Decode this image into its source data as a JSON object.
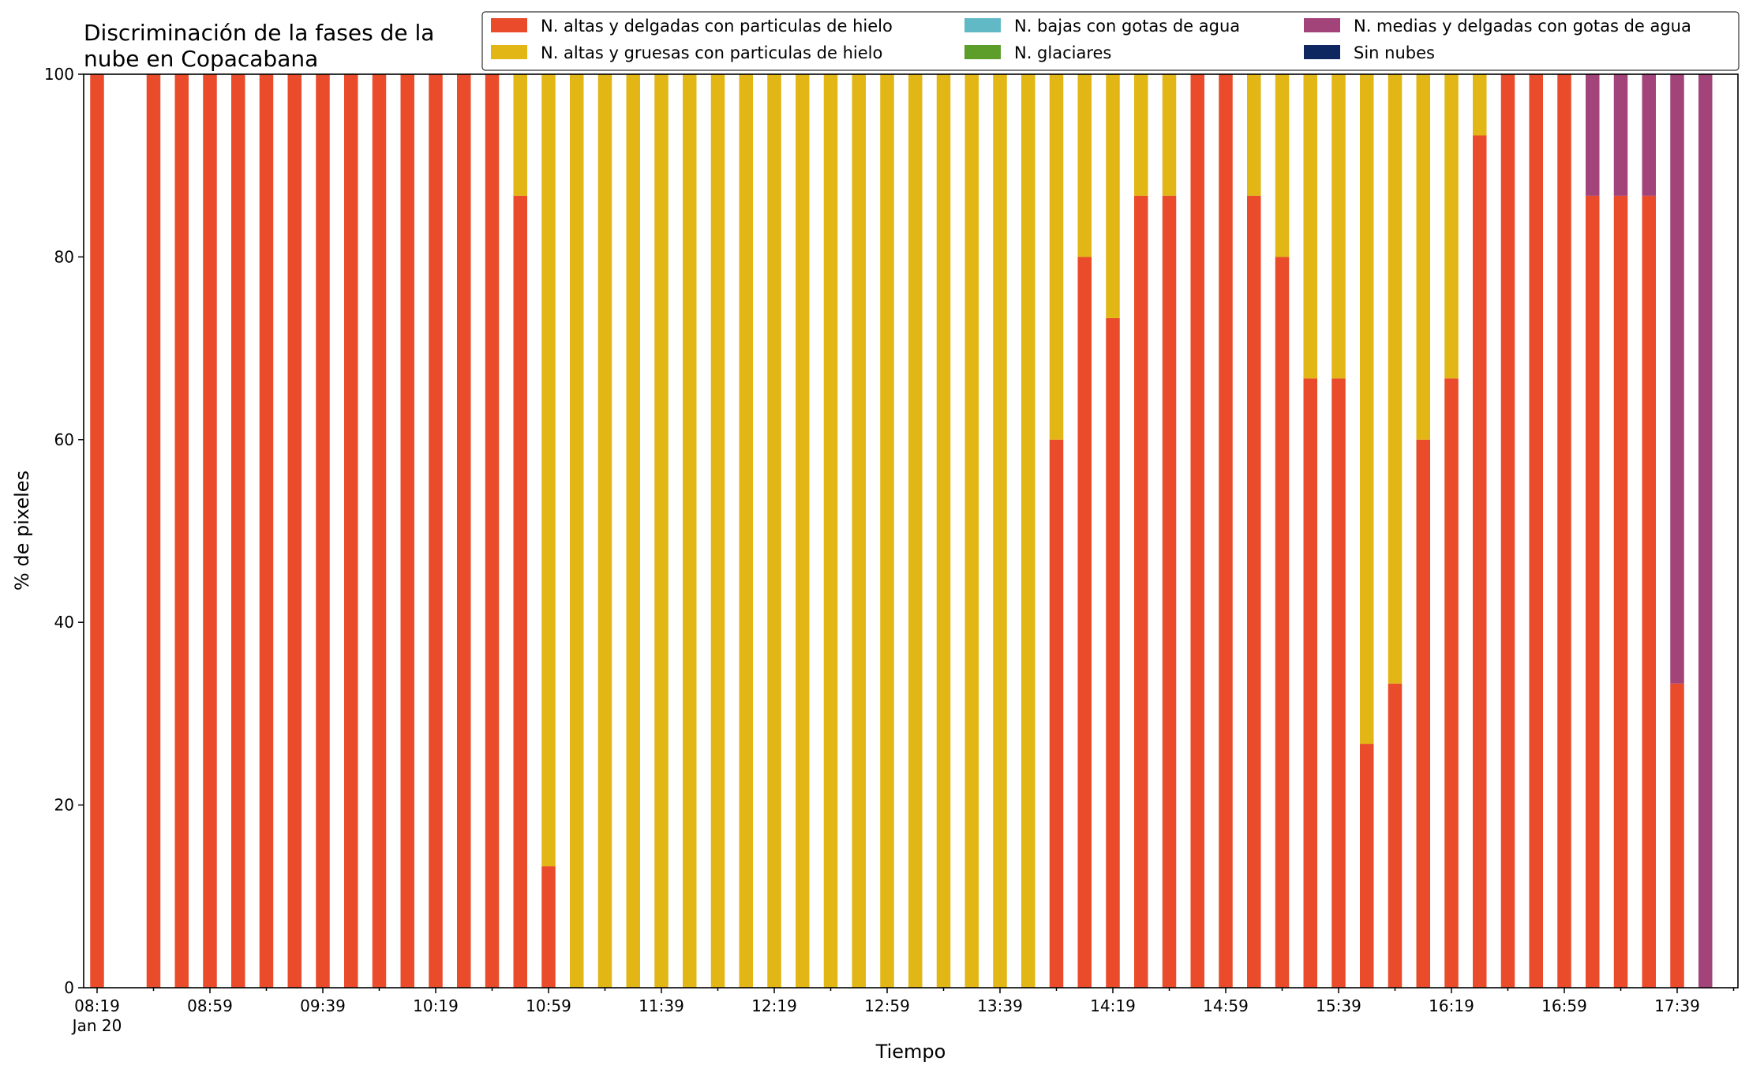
{
  "chart_data": {
    "type": "bar",
    "stacked": true,
    "title": "Discriminación de la fases de la\nnube en Copacabana",
    "xlabel": "Tiempo",
    "ylabel": "% de pixeles",
    "ylim": [
      0,
      100
    ],
    "yticks": [
      0,
      20,
      40,
      60,
      80,
      100
    ],
    "grid": false,
    "legend_position": "top-right",
    "xtick_labels": [
      "08:19",
      "08:59",
      "09:39",
      "10:19",
      "10:59",
      "11:39",
      "12:19",
      "12:59",
      "13:39",
      "14:19",
      "14:59",
      "15:39",
      "16:19",
      "16:59",
      "17:39"
    ],
    "xtick_sublabel": "Jan 20",
    "categories": [
      "08:19",
      "08:29",
      "08:39",
      "08:49",
      "08:59",
      "09:09",
      "09:19",
      "09:29",
      "09:39",
      "09:49",
      "09:59",
      "10:09",
      "10:19",
      "10:29",
      "10:39",
      "10:49",
      "10:59",
      "11:09",
      "11:19",
      "11:29",
      "11:39",
      "11:49",
      "11:59",
      "12:09",
      "12:19",
      "12:29",
      "12:39",
      "12:49",
      "12:59",
      "13:09",
      "13:19",
      "13:29",
      "13:39",
      "13:49",
      "13:59",
      "14:09",
      "14:19",
      "14:29",
      "14:39",
      "14:49",
      "14:59",
      "15:09",
      "15:19",
      "15:29",
      "15:39",
      "15:49",
      "15:59",
      "16:09",
      "16:19",
      "16:29",
      "16:39",
      "16:49",
      "16:59",
      "17:09",
      "17:19",
      "17:29",
      "17:39",
      "17:49"
    ],
    "series": [
      {
        "name": "N. altas y delgadas con particulas de hielo",
        "color": "#e94b2b",
        "values": [
          100,
          0,
          100,
          100,
          100,
          100,
          100,
          100,
          100,
          100,
          100,
          100,
          100,
          100,
          100,
          86.7,
          13.3,
          0,
          0,
          0,
          0,
          0,
          0,
          0,
          0,
          0,
          0,
          0,
          0,
          0,
          0,
          0,
          0,
          0,
          60,
          80,
          73.3,
          86.7,
          86.7,
          100,
          100,
          86.7,
          80,
          66.7,
          66.7,
          26.7,
          33.3,
          60,
          66.7,
          93.3,
          100,
          100,
          100,
          86.7,
          86.7,
          86.7,
          33.3,
          0
        ]
      },
      {
        "name": "N. altas y gruesas con particulas de hielo",
        "color": "#e2b614",
        "values": [
          0,
          0,
          0,
          0,
          0,
          0,
          0,
          0,
          0,
          0,
          0,
          0,
          0,
          0,
          0,
          13.3,
          86.7,
          100,
          100,
          100,
          100,
          100,
          100,
          100,
          100,
          100,
          100,
          100,
          100,
          100,
          100,
          100,
          100,
          100,
          40,
          20,
          26.7,
          13.3,
          13.3,
          0,
          0,
          13.3,
          20,
          33.3,
          33.3,
          73.3,
          66.7,
          40,
          33.3,
          6.7,
          0,
          0,
          0,
          0,
          0,
          0,
          0,
          0
        ]
      },
      {
        "name": "N. bajas con gotas de agua",
        "color": "#61b9c6",
        "values": [
          0,
          0,
          0,
          0,
          0,
          0,
          0,
          0,
          0,
          0,
          0,
          0,
          0,
          0,
          0,
          0,
          0,
          0,
          0,
          0,
          0,
          0,
          0,
          0,
          0,
          0,
          0,
          0,
          0,
          0,
          0,
          0,
          0,
          0,
          0,
          0,
          0,
          0,
          0,
          0,
          0,
          0,
          0,
          0,
          0,
          0,
          0,
          0,
          0,
          0,
          0,
          0,
          0,
          0,
          0,
          0,
          0,
          0
        ]
      },
      {
        "name": "N. glaciares",
        "color": "#5d9e2a",
        "values": [
          0,
          0,
          0,
          0,
          0,
          0,
          0,
          0,
          0,
          0,
          0,
          0,
          0,
          0,
          0,
          0,
          0,
          0,
          0,
          0,
          0,
          0,
          0,
          0,
          0,
          0,
          0,
          0,
          0,
          0,
          0,
          0,
          0,
          0,
          0,
          0,
          0,
          0,
          0,
          0,
          0,
          0,
          0,
          0,
          0,
          0,
          0,
          0,
          0,
          0,
          0,
          0,
          0,
          0,
          0,
          0,
          0,
          0
        ]
      },
      {
        "name": "N. medias y delgadas con gotas de agua",
        "color": "#a2437a",
        "values": [
          0,
          0,
          0,
          0,
          0,
          0,
          0,
          0,
          0,
          0,
          0,
          0,
          0,
          0,
          0,
          0,
          0,
          0,
          0,
          0,
          0,
          0,
          0,
          0,
          0,
          0,
          0,
          0,
          0,
          0,
          0,
          0,
          0,
          0,
          0,
          0,
          0,
          0,
          0,
          0,
          0,
          0,
          0,
          0,
          0,
          0,
          0,
          0,
          0,
          0,
          0,
          0,
          0,
          13.3,
          13.3,
          13.3,
          66.7,
          100
        ]
      },
      {
        "name": "Sin nubes",
        "color": "#0e2760",
        "values": [
          0,
          0,
          0,
          0,
          0,
          0,
          0,
          0,
          0,
          0,
          0,
          0,
          0,
          0,
          0,
          0,
          0,
          0,
          0,
          0,
          0,
          0,
          0,
          0,
          0,
          0,
          0,
          0,
          0,
          0,
          0,
          0,
          0,
          0,
          0,
          0,
          0,
          0,
          0,
          0,
          0,
          0,
          0,
          0,
          0,
          0,
          0,
          0,
          0,
          0,
          0,
          0,
          0,
          0,
          0,
          0,
          0,
          0
        ]
      }
    ]
  }
}
